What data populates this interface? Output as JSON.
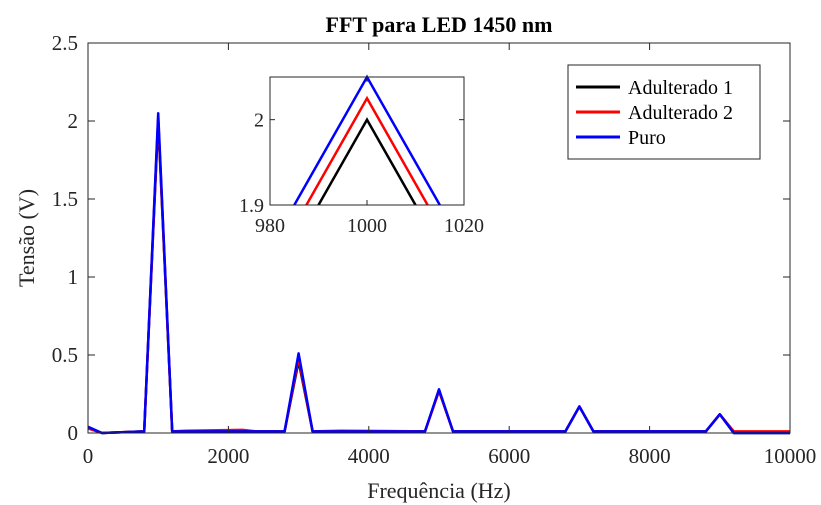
{
  "chart_data": {
    "type": "line",
    "title": "FFT para LED 1450 nm",
    "xlabel": "Frequência (Hz)",
    "ylabel": "Tensão (V)",
    "xlim": [
      0,
      10000
    ],
    "ylim": [
      0,
      2.5
    ],
    "xticks": [
      0,
      2000,
      4000,
      6000,
      8000,
      10000
    ],
    "xtick_labels": [
      "0",
      "2000",
      "4000",
      "6000",
      "8000",
      "10000"
    ],
    "yticks": [
      0,
      0.5,
      1,
      1.5,
      2,
      2.5
    ],
    "ytick_labels": [
      "0",
      "0.5",
      "1",
      "1.5",
      "2",
      "2.5"
    ],
    "grid": false,
    "legend_position": "top-right",
    "series": [
      {
        "name": "Adulterado 1",
        "color": "#000000",
        "x": [
          0,
          200,
          800,
          1000,
          1200,
          1400,
          2200,
          2400,
          2800,
          3000,
          3200,
          3600,
          4800,
          5000,
          5200,
          5800,
          6800,
          7000,
          7200,
          8800,
          9000,
          9200,
          10000
        ],
        "y": [
          0.03,
          0.0,
          0.01,
          2.0,
          0.01,
          0.01,
          0.01,
          0.01,
          0.01,
          0.46,
          0.01,
          0.01,
          0.01,
          0.27,
          0.01,
          0.01,
          0.01,
          0.17,
          0.01,
          0.01,
          0.12,
          0.0,
          0.0
        ]
      },
      {
        "name": "Adulterado 2",
        "color": "#ff0000",
        "x": [
          0,
          200,
          800,
          1000,
          1200,
          1400,
          2200,
          2400,
          2800,
          3000,
          3200,
          3600,
          4800,
          5000,
          5200,
          5800,
          6800,
          7000,
          7200,
          8800,
          9000,
          9200,
          10000
        ],
        "y": [
          0.03,
          0.0,
          0.01,
          2.02,
          0.01,
          0.015,
          0.02,
          0.01,
          0.01,
          0.48,
          0.01,
          0.015,
          0.01,
          0.27,
          0.01,
          0.01,
          0.01,
          0.17,
          0.01,
          0.01,
          0.12,
          0.01,
          0.01
        ]
      },
      {
        "name": "Puro",
        "color": "#0000ff",
        "x": [
          0,
          200,
          800,
          1000,
          1200,
          1400,
          2200,
          2400,
          2800,
          3000,
          3200,
          3600,
          4800,
          5000,
          5200,
          5800,
          6800,
          7000,
          7200,
          8800,
          9000,
          9200,
          10000
        ],
        "y": [
          0.04,
          0.0,
          0.01,
          2.05,
          0.01,
          0.01,
          0.01,
          0.01,
          0.01,
          0.51,
          0.01,
          0.01,
          0.01,
          0.28,
          0.01,
          0.01,
          0.01,
          0.17,
          0.01,
          0.01,
          0.12,
          0.0,
          0.0
        ]
      }
    ],
    "inset": {
      "xlim": [
        980,
        1020
      ],
      "ylim": [
        1.9,
        2.05
      ],
      "xticks": [
        980,
        1000,
        1020
      ],
      "xtick_labels": [
        "980",
        "1000",
        "1020"
      ],
      "yticks": [
        1.9,
        2
      ],
      "ytick_labels": [
        "1.9",
        "2"
      ],
      "series": [
        {
          "name": "Adulterado 1",
          "color": "#000000",
          "x": [
            990,
            1000,
            1010
          ],
          "y": [
            1.9,
            2.0,
            1.9
          ]
        },
        {
          "name": "Adulterado 2",
          "color": "#ff0000",
          "x": [
            987.5,
            1000,
            1012.5
          ],
          "y": [
            1.9,
            2.025,
            1.9
          ]
        },
        {
          "name": "Puro",
          "color": "#0000ff",
          "x": [
            985,
            1000,
            1015
          ],
          "y": [
            1.9,
            2.05,
            1.9
          ]
        }
      ]
    }
  }
}
